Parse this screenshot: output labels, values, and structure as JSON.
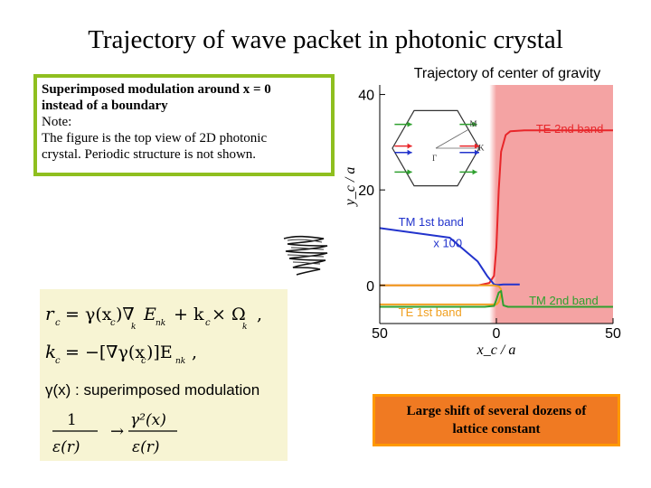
{
  "slide": {
    "title": "Trajectory of wave packet in photonic crystal"
  },
  "note_box": {
    "line1": "Superimposed modulation around x = 0",
    "line2": "instead of a boundary",
    "line3": "Note:",
    "line4": "The figure is the top view of 2D photonic",
    "line5": "crystal. Periodic structure is not shown."
  },
  "equations": {
    "eq1_lhs": "r",
    "eq1_rhs": "= γ(x",
    "eq1_rhs2": ")∇",
    "eq1_rhs3": "E",
    "eq1_rhs4": "+ k",
    "eq1_rhs5": "× Ω",
    "eq1_end": ",",
    "eq2_lhs": "k",
    "eq2_rhs": "= −[∇γ(x",
    "eq2_rhs2": ")]E",
    "eq2_end": ",",
    "eq3": "γ(x) : superimposed modulation",
    "eq4_num_left": "1",
    "eq4_den_left": "ε(r)",
    "eq4_arrow": "→",
    "eq4_num_right": "γ²(x)",
    "eq4_den_right": "ε(r)",
    "sub_c": "c",
    "sub_kc": "k",
    "sub_nkc": "nk"
  },
  "conclusion": {
    "line1": "Large shift of several dozens of",
    "line2": "lattice constant"
  },
  "chart_data": {
    "type": "line",
    "title": "Trajectory of center of gravity",
    "xlabel": "x_c / a",
    "ylabel": "y_c / a",
    "xlim": [
      -50,
      50
    ],
    "ylim": [
      -8,
      42
    ],
    "x_tick_labels": [
      "50",
      "0",
      "50"
    ],
    "x_ticks": [
      -50,
      0,
      50
    ],
    "y_tick_labels": [
      "0",
      "20",
      "40"
    ],
    "y_ticks": [
      0,
      20,
      40
    ],
    "shaded_region": {
      "from": 0,
      "to": 50,
      "color": "#f4a3a3",
      "gradient_from": -3
    },
    "inset_labels": [
      "M",
      "K",
      "Γ"
    ],
    "series": [
      {
        "name": "TE 2nd band",
        "color": "#e8262a",
        "x": [
          -50,
          -8,
          -3,
          -1,
          0,
          1,
          2,
          4,
          6,
          12,
          30,
          50
        ],
        "y": [
          0,
          0,
          0.5,
          2,
          8,
          20,
          28,
          31.5,
          32.3,
          32.5,
          32.5,
          32.5
        ]
      },
      {
        "name": "TM 1st band x 100",
        "color": "#2233cc",
        "x": [
          -50,
          -20,
          -8,
          -4,
          -2,
          -1,
          0,
          1,
          3,
          6,
          10
        ],
        "y": [
          12,
          10,
          5,
          2,
          0.8,
          0.2,
          0.1,
          0.1,
          0.2,
          0.2,
          0.2
        ]
      },
      {
        "name": "TE 1st band",
        "color": "#f0a020",
        "x": [
          -50,
          -20,
          0,
          1,
          2,
          2,
          1,
          -1,
          -50
        ],
        "y": [
          -4,
          -4,
          -4,
          -3.5,
          -2,
          -0.8,
          -0.2,
          0,
          0
        ]
      },
      {
        "name": "TM 2nd band",
        "color": "#2fa02f",
        "x": [
          -50,
          -5,
          -1,
          0,
          1,
          2,
          3,
          5,
          50
        ],
        "y": [
          -4.5,
          -4.5,
          -4.3,
          -3,
          -1.5,
          -1.2,
          -4.2,
          -4.5,
          -4.5
        ]
      }
    ],
    "annotations": [
      {
        "text": "TE 2nd band",
        "color": "#e8262a",
        "x": 17,
        "y": 32
      },
      {
        "text": "TM 1st band",
        "color": "#2233cc",
        "x": -42,
        "y": 12.5
      },
      {
        "text": "x 100",
        "color": "#2233cc",
        "x": -27,
        "y": 8
      },
      {
        "text": "TE 1st band",
        "color": "#f0a020",
        "x": -42,
        "y": -6.5
      },
      {
        "text": "TM 2nd band",
        "color": "#2fa02f",
        "x": 14,
        "y": -4
      }
    ]
  }
}
